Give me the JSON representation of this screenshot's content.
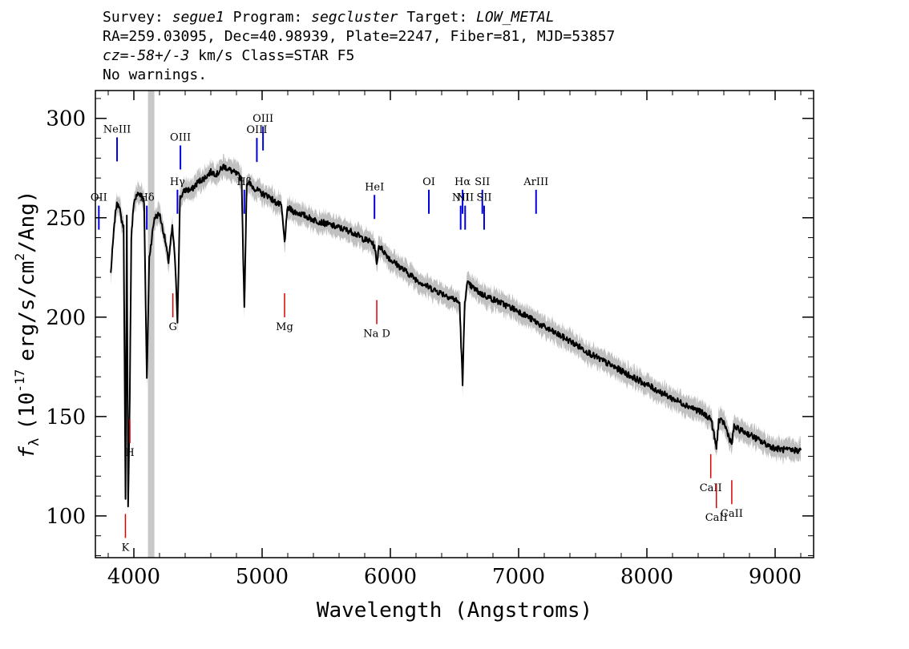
{
  "header": {
    "survey_label": "Survey:",
    "survey": "segue1",
    "program_label": "Program:",
    "program": "segcluster",
    "target_label": "Target:",
    "target": "LOW_METAL",
    "line2": "RA=259.03095, Dec=40.98939, Plate=2247, Fiber=81, MJD=53857",
    "cz_label": "cz=",
    "cz_value": "-58+/-3",
    "cz_rest": " km/s Class=STAR F5",
    "warnings": "No warnings."
  },
  "chart_data": {
    "type": "line",
    "xlabel": "Wavelength (Angstroms)",
    "ylabel_main": "f",
    "ylabel_sub": "λ",
    "ylabel_units_pre": "(10",
    "ylabel_exp": "-17",
    "ylabel_units_mid": "erg/s/cm",
    "ylabel_exp2": "2",
    "ylabel_units_post": "/Ang)",
    "xlim": [
      3700,
      9300
    ],
    "ylim": [
      79,
      314
    ],
    "xticks": [
      "4000",
      "5000",
      "6000",
      "7000",
      "8000",
      "9000"
    ],
    "yticks": [
      "100",
      "150",
      "200",
      "250",
      "300"
    ],
    "masked_region": [
      4110,
      4160
    ],
    "colors": {
      "spectrum": "#000000",
      "error_band": "#c0c0c0",
      "emission_lines": "#0000dd",
      "absorption_lines": "#dd0000"
    },
    "spectrum": {
      "x": [
        3820,
        3840,
        3860,
        3880,
        3900,
        3920,
        3935,
        3945,
        3955,
        3968,
        3980,
        4000,
        4030,
        4060,
        4080,
        4101,
        4120,
        4160,
        4200,
        4240,
        4270,
        4300,
        4320,
        4340,
        4360,
        4400,
        4450,
        4500,
        4550,
        4600,
        4650,
        4700,
        4750,
        4800,
        4840,
        4861,
        4880,
        4920,
        4960,
        5000,
        5050,
        5100,
        5150,
        5175,
        5200,
        5250,
        5300,
        5400,
        5500,
        5600,
        5700,
        5800,
        5850,
        5880,
        5893,
        5910,
        5950,
        6000,
        6100,
        6200,
        6300,
        6400,
        6500,
        6540,
        6563,
        6580,
        6600,
        6700,
        6800,
        6900,
        7000,
        7100,
        7200,
        7400,
        7600,
        7800,
        8000,
        8200,
        8400,
        8500,
        8542,
        8560,
        8600,
        8662,
        8680,
        8700,
        8800,
        8900,
        9000,
        9100,
        9200
      ],
      "y": [
        222,
        240,
        255,
        258,
        250,
        245,
        110,
        250,
        104,
        160,
        240,
        258,
        262,
        262,
        258,
        168,
        230,
        250,
        252,
        240,
        228,
        245,
        230,
        198,
        260,
        264,
        264,
        268,
        270,
        273,
        272,
        276,
        274,
        272,
        270,
        204,
        268,
        266,
        264,
        262,
        261,
        258,
        256,
        238,
        255,
        253,
        252,
        249,
        247,
        245,
        243,
        239,
        238,
        235,
        226,
        236,
        233,
        229,
        224,
        219,
        215,
        212,
        209,
        207,
        166,
        208,
        217,
        212,
        209,
        206,
        203,
        199,
        195,
        188,
        180,
        173,
        166,
        159,
        153,
        149,
        134,
        148,
        147,
        136,
        145,
        144,
        141,
        137,
        134,
        133,
        133
      ]
    },
    "emission_lines": [
      {
        "label": "OII",
        "x": 3727
      },
      {
        "label": "NeIII",
        "x": 3869
      },
      {
        "label": "Hδ",
        "x": 4101
      },
      {
        "label": "Hγ",
        "x": 4340
      },
      {
        "label": "OIII",
        "x": 4363
      },
      {
        "label": "Hβ",
        "x": 4861
      },
      {
        "label": "OIII",
        "x": 4959
      },
      {
        "label": "OIII",
        "x": 5007
      },
      {
        "label": "HeI",
        "x": 5876
      },
      {
        "label": "OI",
        "x": 6300
      },
      {
        "label": "NII",
        "x": 6548
      },
      {
        "label": "Hα",
        "x": 6563
      },
      {
        "label": "NII",
        "x": 6583
      },
      {
        "label": "SII",
        "x": 6717
      },
      {
        "label": "SII",
        "x": 6731
      },
      {
        "label": "ArIII",
        "x": 7136
      }
    ],
    "absorption_lines": [
      {
        "label": "K",
        "x": 3934
      },
      {
        "label": "H",
        "x": 3969
      },
      {
        "label": "G",
        "x": 4304
      },
      {
        "label": "Mg",
        "x": 5175
      },
      {
        "label": "Na  D",
        "x": 5894
      },
      {
        "label": "CaII",
        "x": 8498
      },
      {
        "label": "CaII",
        "x": 8542
      },
      {
        "label": "CaII",
        "x": 8662
      }
    ]
  }
}
